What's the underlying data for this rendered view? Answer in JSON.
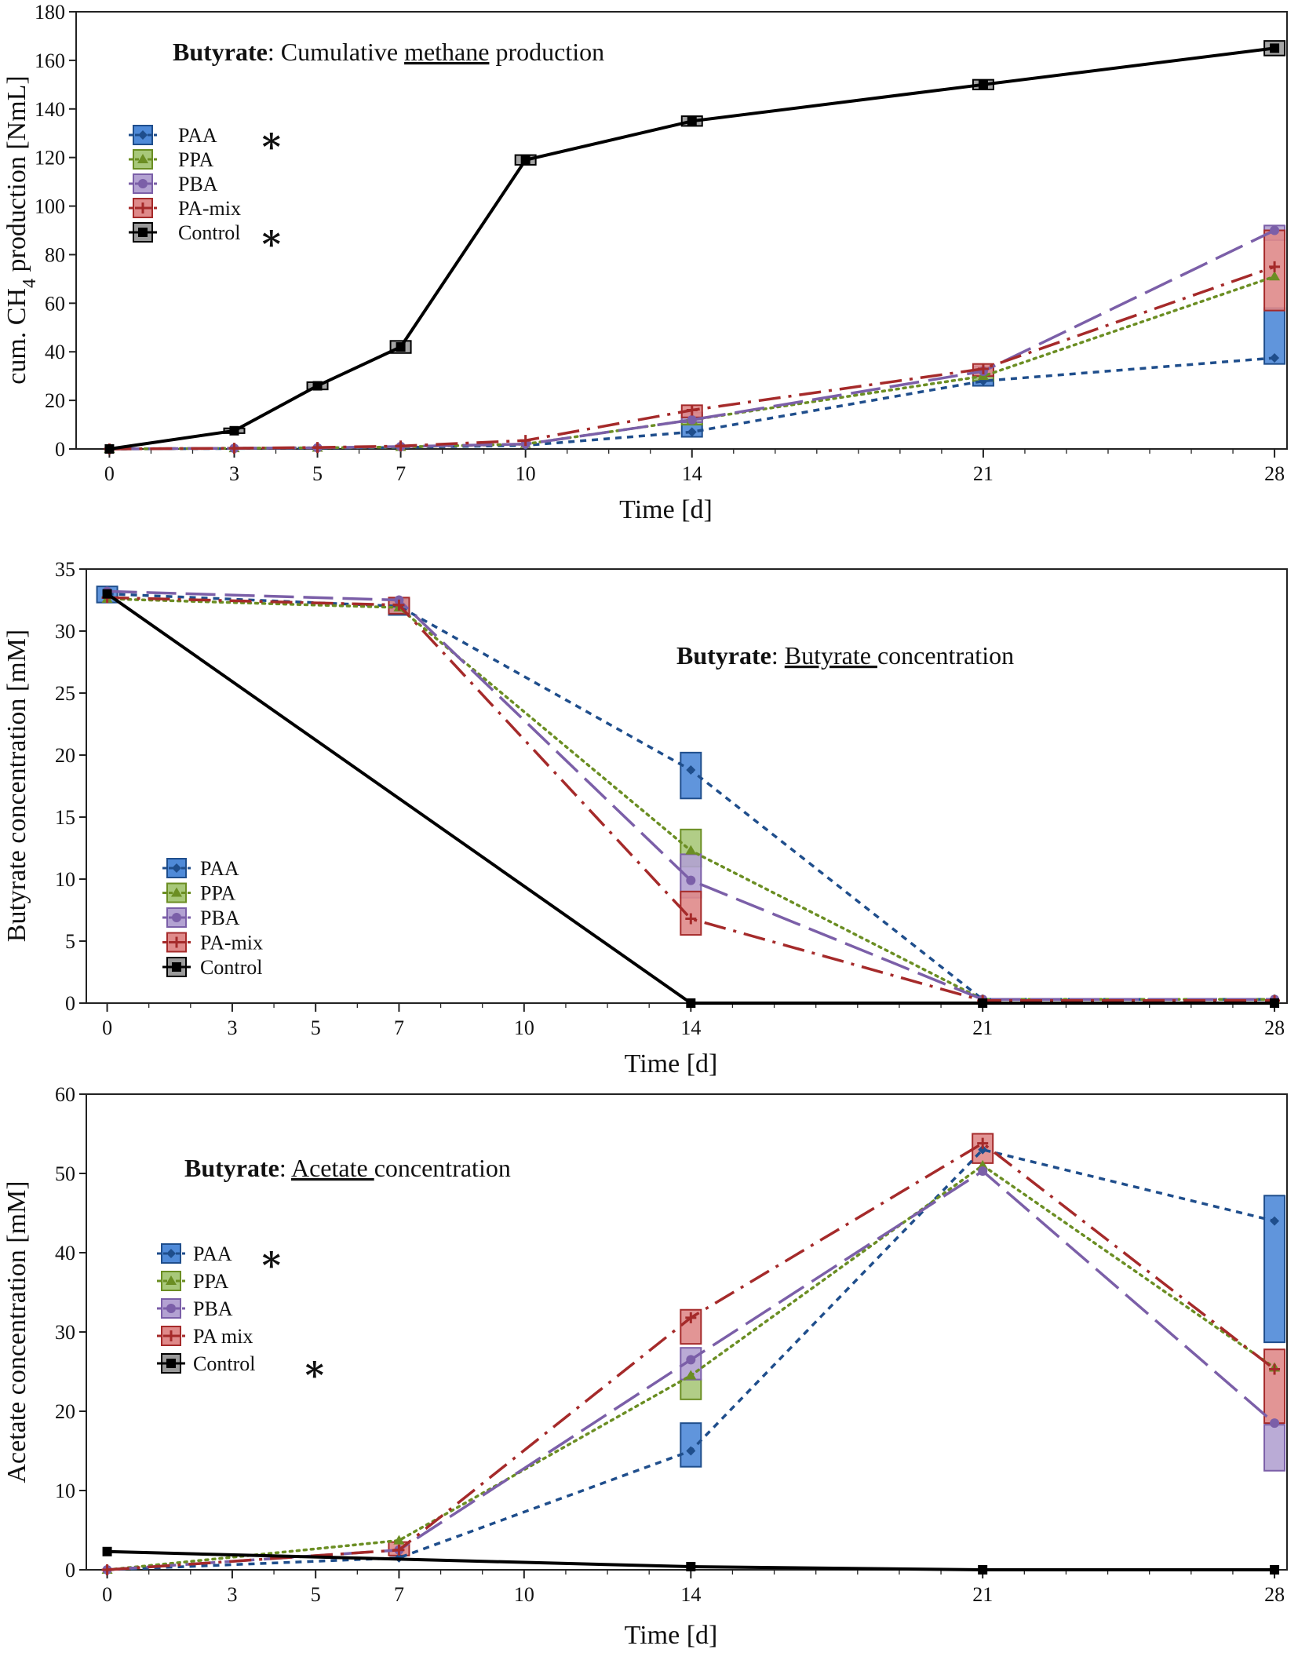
{
  "figure_title": "Butyrate",
  "colors": {
    "PAA": "#1f4e8c",
    "PAA_fill": "#4f8ad8",
    "PPA": "#6b8e23",
    "PPA_fill": "#a8c87a",
    "PBA": "#7b5fa8",
    "PBA_fill": "#b3a2d2",
    "PAmix": "#a52a2a",
    "PAmix_fill": "#df8a8a",
    "Control": "#000000",
    "Control_fill": "#9a9a9a"
  },
  "chart_data": [
    {
      "id": "methane",
      "type": "line",
      "title_bold": "Butyrate",
      "title_sep": ": Cumulative ",
      "title_underlined": "methane",
      "title_after": " production",
      "xlabel": "Time [d]",
      "ylabel_main": "cum. CH",
      "ylabel_sub": "4",
      "ylabel_tail": " production [NmL]",
      "xlim": [
        -0.8,
        28.3
      ],
      "ylim": [
        0,
        180
      ],
      "xticks": [
        0,
        3,
        5,
        7,
        10,
        14,
        21,
        28
      ],
      "yticks": [
        0,
        20,
        40,
        60,
        80,
        100,
        120,
        140,
        160,
        180
      ],
      "x": [
        0,
        3,
        5,
        7,
        10,
        14,
        21,
        28
      ],
      "series": [
        {
          "key": "PAA",
          "name": "PAA",
          "star": "∗",
          "dash": "8,7",
          "marker": "diamond",
          "values": [
            0,
            0.2,
            0.4,
            0.6,
            1.5,
            7,
            28,
            37.5
          ],
          "boxes": [
            [
              14,
              5,
              12
            ],
            [
              21,
              26,
              30
            ],
            [
              28,
              35,
              58
            ]
          ]
        },
        {
          "key": "PPA",
          "name": "PPA",
          "star": "",
          "dash": "3,6",
          "marker": "triangle",
          "values": [
            0,
            0.3,
            0.5,
            0.8,
            2,
            12,
            30,
            71
          ],
          "boxes": [
            [
              14,
              10,
              14
            ],
            [
              21,
              28,
              32
            ]
          ]
        },
        {
          "key": "PBA",
          "name": "PBA",
          "star": "",
          "dash": "38,12",
          "marker": "circle",
          "values": [
            0,
            0.3,
            0.5,
            1,
            2,
            12,
            32,
            90
          ],
          "boxes": [
            [
              14,
              11,
              15
            ],
            [
              21,
              30,
              34
            ],
            [
              28,
              86,
              92
            ]
          ]
        },
        {
          "key": "PAmix",
          "name": "PA-mix",
          "star": "",
          "dash": "28,10,4,10",
          "marker": "plus",
          "values": [
            0,
            0.3,
            0.6,
            1.2,
            3.5,
            16,
            33,
            75
          ],
          "boxes": [
            [
              14,
              13,
              18
            ],
            [
              21,
              30,
              35
            ],
            [
              28,
              57,
              90
            ]
          ]
        },
        {
          "key": "Control",
          "name": "Control",
          "star": "∗",
          "dash": "",
          "marker": "square",
          "values": [
            0,
            7.5,
            26,
            42,
            119,
            135,
            150,
            165
          ],
          "boxes": [
            [
              3,
              6.5,
              8.5
            ],
            [
              5,
              24.5,
              27.5
            ],
            [
              7,
              39.5,
              44.5
            ],
            [
              10,
              117,
              121
            ],
            [
              14,
              133,
              137
            ],
            [
              21,
              148,
              152
            ],
            [
              28,
              162,
              168
            ]
          ]
        }
      ]
    },
    {
      "id": "butyrate",
      "type": "line",
      "title_bold": "Butyrate",
      "title_sep": ": ",
      "title_underlined": "Butyrate ",
      "title_after": "concentration",
      "xlabel": "Time [d]",
      "ylabel_main": "Butyrate concentration [mM]",
      "ylabel_sub": "",
      "ylabel_tail": "",
      "xlim": [
        -0.5,
        28.3
      ],
      "ylim": [
        0,
        35
      ],
      "xticks": [
        0,
        3,
        5,
        7,
        10,
        14,
        21,
        28
      ],
      "yticks": [
        0,
        5,
        10,
        15,
        20,
        25,
        30,
        35
      ],
      "x": [
        0,
        7,
        14,
        21,
        28
      ],
      "series": [
        {
          "key": "PAA",
          "name": "PAA",
          "star": "",
          "dash": "8,7",
          "marker": "diamond",
          "values": [
            33,
            32,
            18.8,
            0.3,
            0.3
          ],
          "boxes": [
            [
              0,
              32.3,
              33.6
            ],
            [
              7,
              31.3,
              32.6
            ],
            [
              14,
              16.5,
              20.2
            ]
          ]
        },
        {
          "key": "PPA",
          "name": "PPA",
          "star": "",
          "dash": "3,6",
          "marker": "triangle",
          "values": [
            32.6,
            31.9,
            12.3,
            0.3,
            0.3
          ],
          "boxes": [
            [
              14,
              11,
              14
            ]
          ]
        },
        {
          "key": "PBA",
          "name": "PBA",
          "star": "",
          "dash": "38,12",
          "marker": "circle",
          "values": [
            33.2,
            32.5,
            9.9,
            0.3,
            0.3
          ],
          "boxes": [
            [
              14,
              8.5,
              12
            ]
          ]
        },
        {
          "key": "PAmix",
          "name": "PA-mix",
          "star": "",
          "dash": "28,10,4,10",
          "marker": "plus",
          "values": [
            32.7,
            32.1,
            6.8,
            0.2,
            0.2
          ],
          "boxes": [
            [
              7,
              31.4,
              32.7
            ],
            [
              14,
              5.5,
              9
            ]
          ]
        },
        {
          "key": "Control",
          "name": "Control",
          "star": "",
          "dash": "",
          "marker": "square",
          "values": [
            33,
            null,
            0,
            0,
            0
          ],
          "boxes": []
        }
      ]
    },
    {
      "id": "acetate",
      "type": "line",
      "title_bold": "Butyrate",
      "title_sep": ": ",
      "title_underlined": "Acetate ",
      "title_after": "concentration",
      "xlabel": "Time [d]",
      "ylabel_main": "Acetate concentration [mM]",
      "ylabel_sub": "",
      "ylabel_tail": "",
      "xlim": [
        -0.5,
        28.3
      ],
      "ylim": [
        0,
        60
      ],
      "xticks": [
        0,
        3,
        5,
        7,
        10,
        14,
        21,
        28
      ],
      "yticks": [
        0,
        10,
        20,
        30,
        40,
        50,
        60
      ],
      "x": [
        0,
        7,
        14,
        21,
        28
      ],
      "series": [
        {
          "key": "PAA",
          "name": "PAA",
          "star": "∗",
          "dash": "8,7",
          "marker": "diamond",
          "values": [
            0,
            1.5,
            15,
            53,
            44
          ],
          "boxes": [
            [
              14,
              13,
              18.5
            ],
            [
              28,
              28.7,
              47.2
            ]
          ]
        },
        {
          "key": "PPA",
          "name": "PPA",
          "star": "",
          "dash": "3,6",
          "marker": "triangle",
          "values": [
            0,
            3.7,
            24.5,
            51,
            25.5
          ],
          "boxes": [
            [
              14,
              21.5,
              24
            ]
          ]
        },
        {
          "key": "PBA",
          "name": "PBA",
          "star": "",
          "dash": "38,12",
          "marker": "circle",
          "values": [
            0,
            2.5,
            26.5,
            50.3,
            18.5
          ],
          "boxes": [
            [
              14,
              24,
              28
            ],
            [
              28,
              12.5,
              18.3
            ]
          ]
        },
        {
          "key": "PAmix",
          "name": "PA mix",
          "star": "",
          "dash": "28,10,4,10",
          "marker": "plus",
          "values": [
            0,
            2.5,
            31.8,
            53.8,
            25.3
          ],
          "boxes": [
            [
              7,
              1.8,
              3.5
            ],
            [
              14,
              28.5,
              32.8
            ],
            [
              21,
              51.3,
              55
            ],
            [
              28,
              18.5,
              27.8
            ]
          ]
        },
        {
          "key": "Control",
          "name": "Control",
          "star": "∗",
          "dash": "",
          "marker": "square",
          "values": [
            2.3,
            null,
            0.4,
            0,
            0
          ],
          "boxes": []
        }
      ]
    }
  ]
}
